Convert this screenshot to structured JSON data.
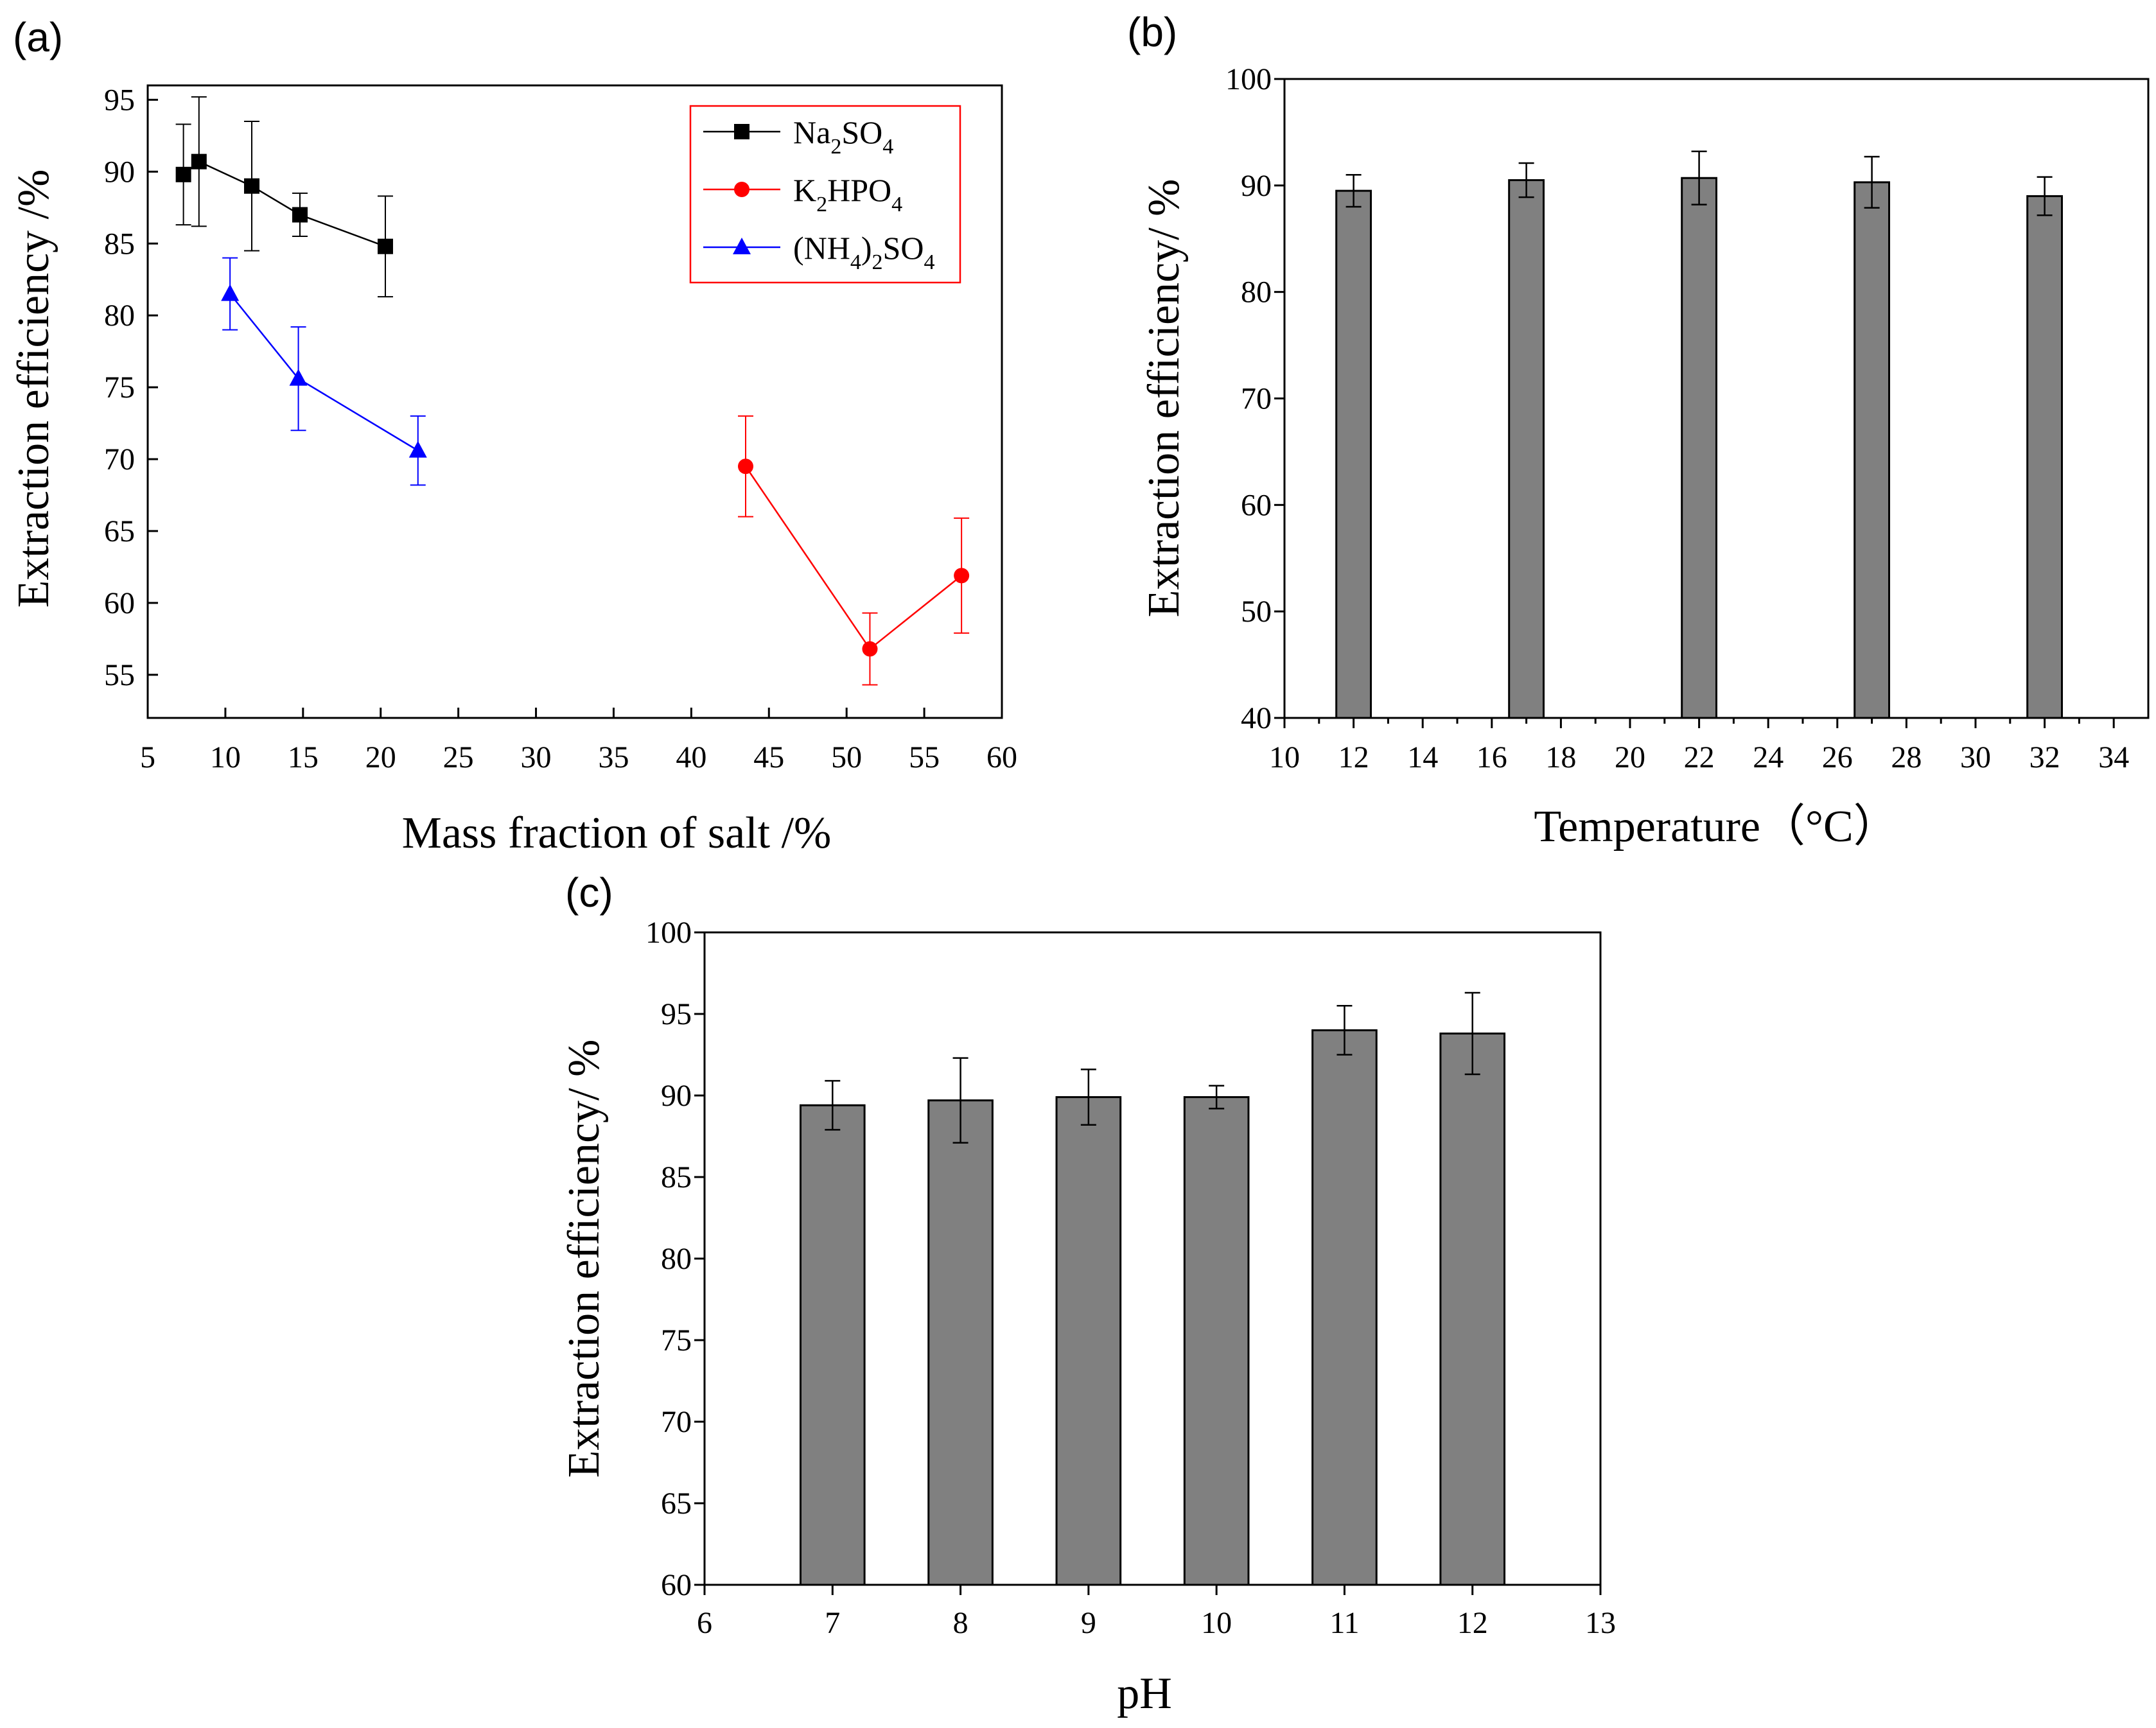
{
  "chart_data": [
    {
      "type": "line",
      "panel_label": "(a)",
      "xlabel": "Mass fraction of salt /%",
      "ylabel": "Extraction efficiency /%",
      "xlim": [
        5,
        60
      ],
      "ylim": [
        52,
        96
      ],
      "xticks": [
        "5",
        "10",
        "15",
        "20",
        "25",
        "30",
        "35",
        "40",
        "45",
        "50",
        "55",
        "60"
      ],
      "yticks": [
        "55",
        "60",
        "65",
        "70",
        "75",
        "80",
        "85",
        "90",
        "95"
      ],
      "legend_position": "top-right",
      "series": [
        {
          "name": "Na2SO4",
          "name_parts": [
            "Na",
            "2",
            "SO",
            "4",
            "",
            ""
          ],
          "color": "#000000",
          "marker": "square",
          "x": [
            7.3,
            8.3,
            11.7,
            14.8,
            20.3
          ],
          "y": [
            89.8,
            90.7,
            89.0,
            87.0,
            84.8
          ],
          "err": [
            3.5,
            4.5,
            4.5,
            1.5,
            3.5
          ]
        },
        {
          "name": "K2HPO4",
          "name_parts": [
            "K",
            "2",
            "HPO",
            "4",
            "",
            ""
          ],
          "color": "#ff0000",
          "marker": "circle",
          "x": [
            43.5,
            51.5,
            57.4
          ],
          "y": [
            69.5,
            56.8,
            61.9
          ],
          "err": [
            3.5,
            2.5,
            4.0
          ]
        },
        {
          "name": "(NH4)2SO4",
          "name_parts": [
            "(NH",
            "4",
            ")",
            "2",
            "SO",
            "4"
          ],
          "color": "#0000ff",
          "marker": "triangle",
          "x": [
            10.3,
            14.7,
            22.4
          ],
          "y": [
            81.5,
            75.6,
            70.6
          ],
          "err": [
            2.5,
            3.6,
            2.4
          ]
        }
      ]
    },
    {
      "type": "bar",
      "panel_label": "(b)",
      "xlabel": "Temperature（°C）",
      "ylabel": "Extraction efficiency/ %",
      "xlim": [
        10,
        35
      ],
      "ylim": [
        40,
        100
      ],
      "xticks": [
        "10",
        "12",
        "14",
        "16",
        "18",
        "20",
        "22",
        "24",
        "26",
        "28",
        "30",
        "32",
        "34"
      ],
      "yticks": [
        "40",
        "50",
        "60",
        "70",
        "80",
        "90",
        "100"
      ],
      "bar_color": "#808080",
      "x": [
        12,
        17,
        22,
        27,
        32
      ],
      "values": [
        89.5,
        90.5,
        90.7,
        90.3,
        89.0
      ],
      "err": [
        1.5,
        1.6,
        2.5,
        2.4,
        1.8
      ]
    },
    {
      "type": "bar",
      "panel_label": "(c)",
      "xlabel": "pH",
      "ylabel": "Extraction efficiency/ %",
      "xlim": [
        6,
        13
      ],
      "ylim": [
        60,
        100
      ],
      "xticks": [
        "6",
        "7",
        "8",
        "9",
        "10",
        "11",
        "12",
        "13"
      ],
      "yticks": [
        "60",
        "65",
        "70",
        "75",
        "80",
        "85",
        "90",
        "95",
        "100"
      ],
      "bar_color": "#808080",
      "x": [
        7,
        8,
        9,
        10,
        11,
        12
      ],
      "values": [
        89.4,
        89.7,
        89.9,
        89.9,
        94.0,
        93.8
      ],
      "err": [
        1.5,
        2.6,
        1.7,
        0.7,
        1.5,
        2.5
      ]
    }
  ]
}
